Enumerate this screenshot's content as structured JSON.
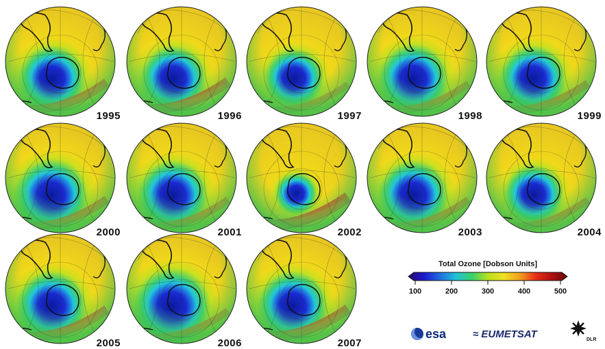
{
  "panels": [
    {
      "year": "1995",
      "hole": 0.95,
      "high": 0.7
    },
    {
      "year": "1996",
      "hole": 0.95,
      "high": 0.85
    },
    {
      "year": "1997",
      "hole": 0.85,
      "high": 0.35
    },
    {
      "year": "1998",
      "hole": 1.0,
      "high": 0.45
    },
    {
      "year": "1999",
      "hole": 0.95,
      "high": 0.55
    },
    {
      "year": "2000",
      "hole": 1.05,
      "high": 0.6
    },
    {
      "year": "2001",
      "hole": 1.0,
      "high": 0.5
    },
    {
      "year": "2002",
      "hole": 0.6,
      "high": 1.0
    },
    {
      "year": "2003",
      "hole": 1.0,
      "high": 0.5
    },
    {
      "year": "2004",
      "hole": 0.85,
      "high": 0.45
    },
    {
      "year": "2005",
      "hole": 1.0,
      "high": 0.75
    },
    {
      "year": "2006",
      "hole": 1.1,
      "high": 0.45
    },
    {
      "year": "2007",
      "hole": 1.0,
      "high": 0.85
    }
  ],
  "legend": {
    "title": "Total Ozone [Dobson Units]",
    "ticks": [
      "100",
      "200",
      "300",
      "400",
      "500"
    ],
    "colors": [
      "#2a0a6a",
      "#1a1ad0",
      "#1f6fe0",
      "#22c0d8",
      "#3ad06a",
      "#b8e020",
      "#f0e020",
      "#f0a020",
      "#e83018",
      "#b01010",
      "#6a0a0a"
    ]
  },
  "logos": {
    "esa": "esa",
    "eumetsat": "EUMETSAT",
    "dlr": "DLR"
  }
}
